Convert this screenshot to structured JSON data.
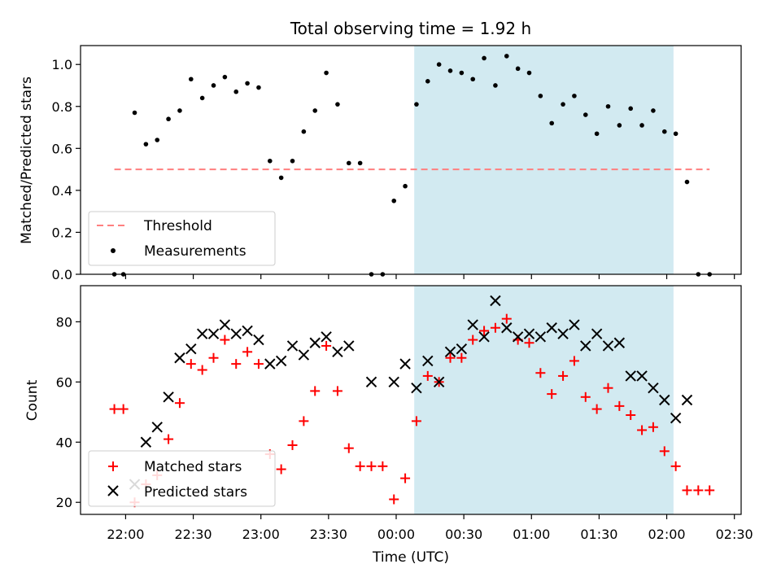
{
  "title": "Total observing time = 1.92 h",
  "chart_data": [
    {
      "type": "scatter",
      "panel": "top",
      "ylabel": "Matched/Predicted stars",
      "xlim": [
        "21:40",
        "02:33"
      ],
      "ylim": [
        0,
        1.09
      ],
      "yticks": [
        "0.0",
        "0.2",
        "0.4",
        "0.6",
        "0.8",
        "1.0"
      ],
      "shaded_interval": {
        "start": "00:08",
        "end": "02:03",
        "color": "#add8e6"
      },
      "threshold": {
        "name": "Threshold",
        "y": 0.5,
        "x_start": "21:55",
        "x_end": "02:19",
        "color": "#ff7f7f",
        "style": "dashed"
      },
      "series": [
        {
          "name": "Measurements",
          "marker": "dot",
          "color": "#000000",
          "x": [
            "21:55",
            "21:59",
            "22:04",
            "22:09",
            "22:14",
            "22:19",
            "22:24",
            "22:29",
            "22:34",
            "22:39",
            "22:44",
            "22:49",
            "22:54",
            "22:59",
            "23:04",
            "23:09",
            "23:14",
            "23:19",
            "23:24",
            "23:29",
            "23:34",
            "23:39",
            "23:44",
            "23:49",
            "23:54",
            "23:59",
            "00:04",
            "00:09",
            "00:14",
            "00:19",
            "00:24",
            "00:29",
            "00:34",
            "00:39",
            "00:44",
            "00:49",
            "00:54",
            "00:59",
            "01:04",
            "01:09",
            "01:14",
            "01:19",
            "01:24",
            "01:29",
            "01:34",
            "01:39",
            "01:44",
            "01:49",
            "01:54",
            "01:59",
            "02:04",
            "02:09",
            "02:14",
            "02:19"
          ],
          "y": [
            0,
            0,
            0.77,
            0.62,
            0.64,
            0.74,
            0.78,
            0.93,
            0.84,
            0.9,
            0.94,
            0.87,
            0.91,
            0.89,
            0.54,
            0.46,
            0.54,
            0.68,
            0.78,
            0.96,
            0.81,
            0.53,
            0.53,
            0,
            0,
            0.35,
            0.42,
            0.81,
            0.92,
            1.0,
            0.97,
            0.96,
            0.93,
            1.03,
            0.9,
            1.04,
            0.98,
            0.96,
            0.85,
            0.72,
            0.81,
            0.85,
            0.76,
            0.67,
            0.8,
            0.71,
            0.79,
            0.71,
            0.78,
            0.68,
            0.67,
            0.44,
            0,
            0
          ]
        }
      ],
      "legend": {
        "position": "lower-left",
        "entries": [
          "Threshold",
          "Measurements"
        ]
      }
    },
    {
      "type": "scatter",
      "panel": "bottom",
      "xlabel": "Time (UTC)",
      "ylabel": "Count",
      "xlim": [
        "21:40",
        "02:33"
      ],
      "ylim": [
        16,
        92
      ],
      "xticks": [
        "22:00",
        "22:30",
        "23:00",
        "23:30",
        "00:00",
        "00:30",
        "01:00",
        "01:30",
        "02:00",
        "02:30"
      ],
      "yticks": [
        "20",
        "40",
        "60",
        "80"
      ],
      "shaded_interval": {
        "start": "00:08",
        "end": "02:03",
        "color": "#add8e6"
      },
      "series": [
        {
          "name": "Matched stars",
          "marker": "+",
          "color": "#ff0000",
          "x": [
            "21:55",
            "21:59",
            "22:04",
            "22:09",
            "22:14",
            "22:19",
            "22:24",
            "22:29",
            "22:34",
            "22:39",
            "22:44",
            "22:49",
            "22:54",
            "22:59",
            "23:04",
            "23:09",
            "23:14",
            "23:19",
            "23:24",
            "23:29",
            "23:34",
            "23:39",
            "23:44",
            "23:49",
            "23:54",
            "23:59",
            "00:04",
            "00:09",
            "00:14",
            "00:19",
            "00:24",
            "00:29",
            "00:34",
            "00:39",
            "00:44",
            "00:49",
            "00:54",
            "00:59",
            "01:04",
            "01:09",
            "01:14",
            "01:19",
            "01:24",
            "01:29",
            "01:34",
            "01:39",
            "01:44",
            "01:49",
            "01:54",
            "01:59",
            "02:04",
            "02:09",
            "02:14",
            "02:19"
          ],
          "y": [
            51,
            51,
            20,
            26,
            29,
            41,
            53,
            66,
            64,
            68,
            74,
            66,
            70,
            66,
            36,
            31,
            39,
            47,
            57,
            72,
            57,
            38,
            32,
            32,
            32,
            21,
            28,
            47,
            62,
            60,
            68,
            68,
            74,
            77,
            78,
            81,
            74,
            73,
            63,
            56,
            62,
            67,
            55,
            51,
            58,
            52,
            49,
            44,
            45,
            37,
            32,
            24,
            24,
            24
          ]
        },
        {
          "name": "Predicted stars",
          "marker": "x",
          "color": "#000000",
          "x": [
            "22:04",
            "22:09",
            "22:14",
            "22:19",
            "22:24",
            "22:29",
            "22:34",
            "22:39",
            "22:44",
            "22:49",
            "22:54",
            "22:59",
            "23:04",
            "23:09",
            "23:14",
            "23:19",
            "23:24",
            "23:29",
            "23:34",
            "23:39",
            "23:49",
            "23:59",
            "00:04",
            "00:09",
            "00:14",
            "00:19",
            "00:24",
            "00:29",
            "00:34",
            "00:39",
            "00:44",
            "00:49",
            "00:54",
            "00:59",
            "01:04",
            "01:09",
            "01:14",
            "01:19",
            "01:24",
            "01:29",
            "01:34",
            "01:39",
            "01:44",
            "01:49",
            "01:54",
            "01:59",
            "02:04",
            "02:09"
          ],
          "y": [
            26,
            40,
            45,
            55,
            68,
            71,
            76,
            76,
            79,
            76,
            77,
            74,
            66,
            67,
            72,
            69,
            73,
            75,
            70,
            72,
            60,
            60,
            66,
            58,
            67,
            60,
            70,
            71,
            79,
            75,
            87,
            78,
            75,
            76,
            75,
            78,
            76,
            79,
            72,
            76,
            72,
            73,
            62,
            62,
            58,
            54,
            48,
            54
          ]
        }
      ],
      "legend": {
        "position": "lower-left",
        "entries": [
          "Matched stars",
          "Predicted stars"
        ]
      }
    }
  ]
}
